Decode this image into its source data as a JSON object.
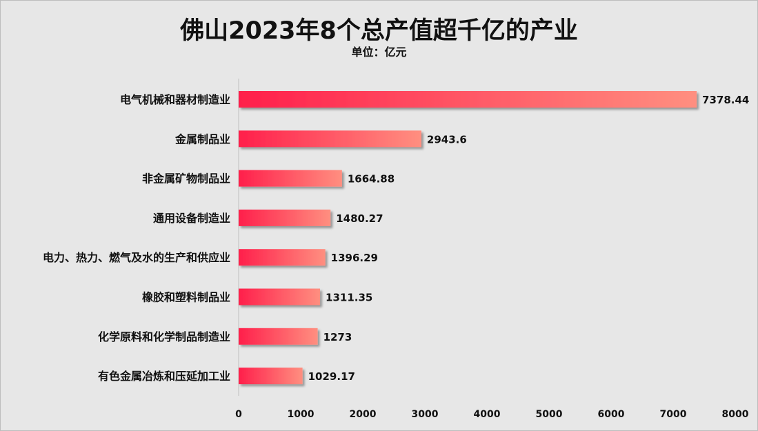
{
  "chart_data": {
    "type": "bar",
    "orientation": "horizontal",
    "title": "佛山2023年8个总产值超千亿的产业",
    "subtitle": "单位：亿元",
    "categories": [
      "电气机械和器材制造业",
      "金属制品业",
      "非金属矿物制品业",
      "通用设备制造业",
      "电力、热力、燃气及水的生产和供应业",
      "橡胶和塑料制品业",
      "化学原料和化学制品制造业",
      "有色金属冶炼和压延加工业"
    ],
    "values": [
      7378.44,
      2943.6,
      1664.88,
      1480.27,
      1396.29,
      1311.35,
      1273,
      1029.17
    ],
    "value_labels": [
      "7378.44",
      "2943.6",
      "1664.88",
      "1480.27",
      "1396.29",
      "1311.35",
      "1273",
      "1029.17"
    ],
    "xlim": [
      0,
      8000
    ],
    "xticks": [
      "0",
      "1000",
      "2000",
      "3000",
      "4000",
      "5000",
      "6000",
      "7000",
      "8000"
    ],
    "grid": false,
    "colors": {
      "gradient_start": "#ff1f4b",
      "gradient_end": "#ff8f80"
    }
  }
}
